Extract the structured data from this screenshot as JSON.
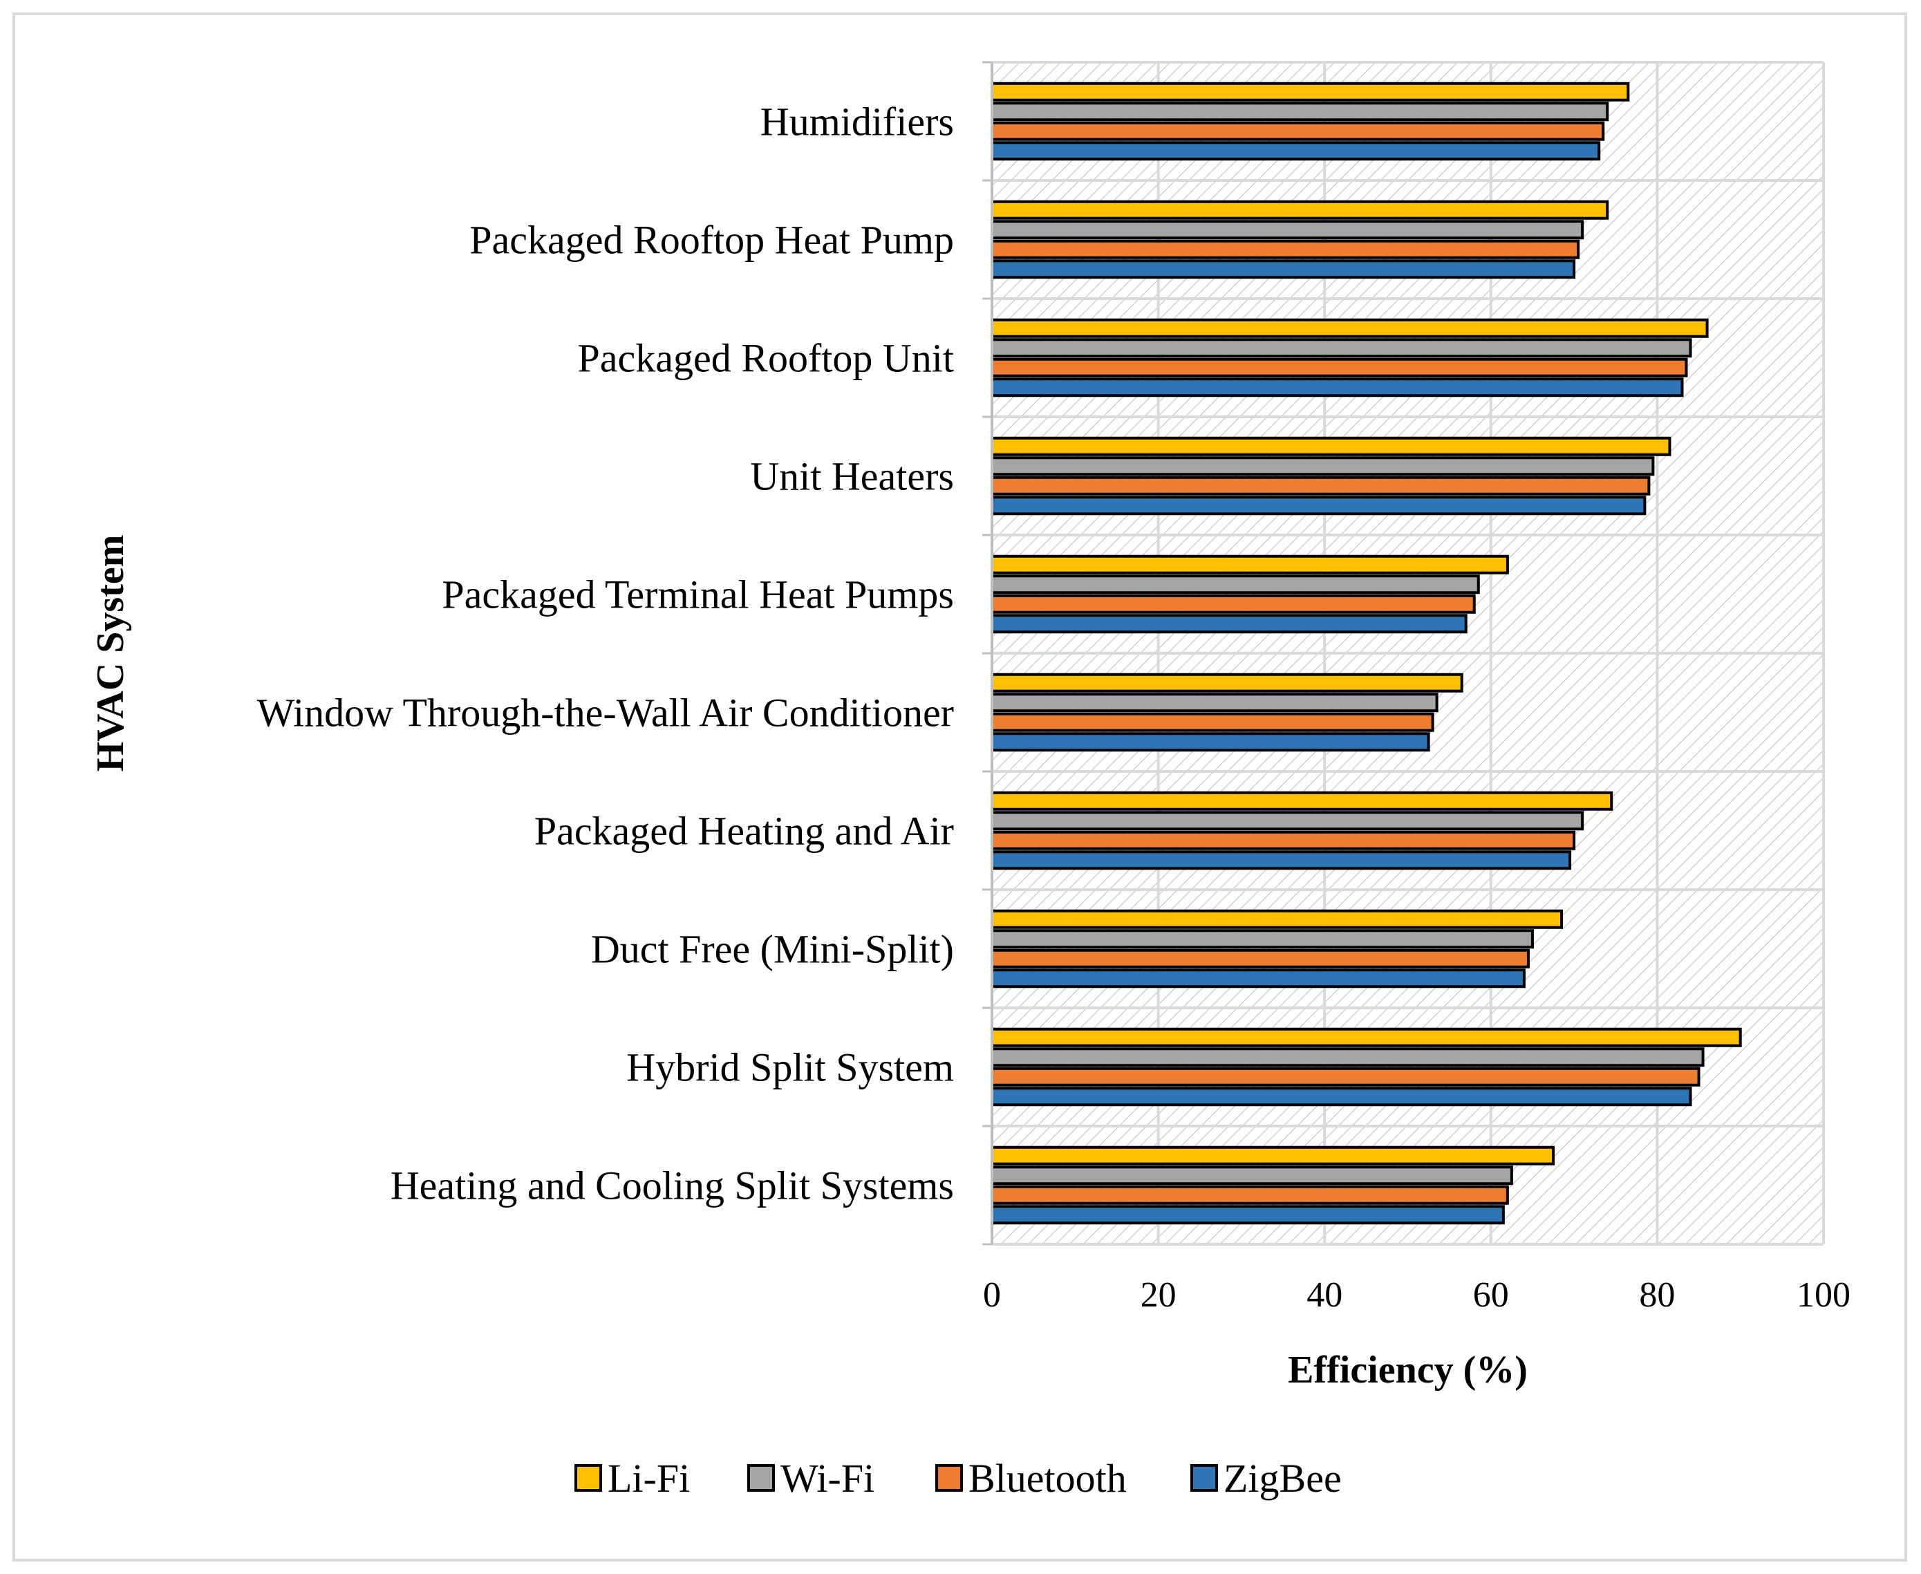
{
  "chart_data": {
    "type": "bar",
    "orientation": "horizontal",
    "title": "",
    "xlabel": "Efficiency (%)",
    "ylabel": "HVAC System",
    "xlim": [
      0,
      100
    ],
    "xticks": [
      0,
      20,
      40,
      60,
      80,
      100
    ],
    "grid": true,
    "legend_position": "bottom",
    "categories": [
      "Heating and Cooling Split Systems",
      "Hybrid Split System",
      "Duct Free (Mini-Split)",
      "Packaged Heating and Air",
      "Window Through-the-Wall Air Conditioner",
      "Packaged Terminal Heat Pumps",
      "Unit Heaters",
      "Packaged Rooftop Unit",
      "Packaged Rooftop Heat Pump",
      "Humidifiers"
    ],
    "series": [
      {
        "name": "Li-Fi",
        "color": "#ffc000",
        "values": [
          67.5,
          90,
          68.5,
          74.5,
          56.5,
          62,
          81.5,
          86,
          74,
          76.5
        ]
      },
      {
        "name": "Wi-Fi",
        "color": "#a5a5a5",
        "values": [
          62.5,
          85.5,
          65,
          71,
          53.5,
          58.5,
          79.5,
          84,
          71,
          74
        ]
      },
      {
        "name": "Bluetooth",
        "color": "#ed7d31",
        "values": [
          62,
          85,
          64.5,
          70,
          53,
          58,
          79,
          83.5,
          70.5,
          73.5
        ]
      },
      {
        "name": "ZigBee",
        "color": "#2e75b6",
        "values": [
          61.5,
          84,
          64,
          69.5,
          52.5,
          57,
          78.5,
          83,
          70,
          73
        ]
      }
    ]
  }
}
